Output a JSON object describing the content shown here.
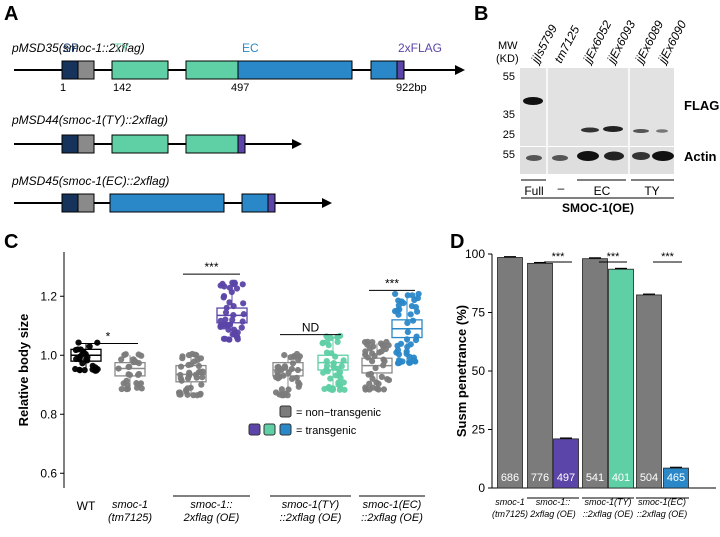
{
  "panels": {
    "A": {
      "letter": "A",
      "constructs": [
        {
          "name": "pMSD35(smoc-1::2xflag)"
        },
        {
          "name": "pMSD44(smoc-1(TY)::2xflag)"
        },
        {
          "name": "pMSD45(smoc-1(EC)::2xflag)"
        }
      ],
      "domain_labels": {
        "sp": "SP",
        "ty": "TY",
        "ec": "EC",
        "flag": "2xFLAG"
      },
      "positions": {
        "start": "1",
        "ty": "142",
        "ec": "497",
        "end": "922bp"
      }
    },
    "B": {
      "letter": "B",
      "mw_label_1": "MW",
      "mw_label_2": "(KD)",
      "lanes": [
        "jjIs5799",
        "tm7125",
        "jjEx6052",
        "jjEx6093",
        "jjEx6089",
        "jjEx6090"
      ],
      "markers_top": [
        "55",
        "35",
        "25"
      ],
      "marker_bottom": "55",
      "row_labels": {
        "flag": "FLAG",
        "actin": "Actin"
      },
      "groups": {
        "full": "Full",
        "dash": "–",
        "ec": "EC",
        "ty": "TY"
      },
      "footer": "SMOC-1(OE)"
    },
    "C": {
      "letter": "C"
    },
    "D": {
      "letter": "D"
    }
  },
  "colors": {
    "sp": "#16335c",
    "grey_box": "#8a8a8a",
    "ty": "#5fcfa5",
    "ec": "#2a88c8",
    "flag": "#5b45a8",
    "nontransgenic": "#7b7b7b",
    "transgenic_full": "#5b45a8",
    "transgenic_ty": "#5fcfa5",
    "transgenic_ec": "#2a88c8"
  },
  "chart_data": [
    {
      "type": "box",
      "id": "C",
      "ylabel": "Relative body size",
      "ylim": [
        0.55,
        1.35
      ],
      "yticks": [
        "0.6",
        "0.8",
        "1.0",
        "1.2"
      ],
      "groups": [
        {
          "label": "WT",
          "label_style": "normal",
          "box": {
            "q1": 0.98,
            "median": 1.0,
            "q3": 1.02,
            "min": 0.95,
            "max": 1.04
          },
          "color": "#000000",
          "n": 28,
          "outlined": true
        },
        {
          "label": "smoc-1\n(tm7125)",
          "label_style": "italic",
          "box": {
            "q1": 0.93,
            "median": 0.955,
            "q3": 0.975,
            "min": 0.89,
            "max": 1.0
          },
          "color": "#7b7b7b",
          "n": 28
        },
        {
          "label": "smoc-1::\n2xflag (OE)",
          "label_style": "italic",
          "box": {
            "q1": 0.91,
            "median": 0.935,
            "q3": 0.965,
            "min": 0.87,
            "max": 1.0
          },
          "color": "#7b7b7b",
          "n": 40
        },
        {
          "label": "",
          "box": {
            "q1": 1.11,
            "median": 1.135,
            "q3": 1.16,
            "min": 1.06,
            "max": 1.24
          },
          "color": "#5b45a8",
          "n": 45
        },
        {
          "label": "smoc-1(TY)\n::2xflag (OE)",
          "label_style": "italic",
          "box": {
            "q1": 0.93,
            "median": 0.95,
            "q3": 0.975,
            "min": 0.87,
            "max": 1.0
          },
          "color": "#7b7b7b",
          "n": 40
        },
        {
          "label": "",
          "box": {
            "q1": 0.95,
            "median": 0.975,
            "q3": 1.0,
            "min": 0.89,
            "max": 1.06
          },
          "color": "#5fcfa5",
          "n": 45
        },
        {
          "label": "smoc-1(EC)\n::2xflag (OE)",
          "label_style": "italic",
          "box": {
            "q1": 0.94,
            "median": 0.965,
            "q3": 0.99,
            "min": 0.89,
            "max": 1.04
          },
          "color": "#7b7b7b",
          "n": 40
        },
        {
          "label": "",
          "box": {
            "q1": 1.06,
            "median": 1.09,
            "q3": 1.12,
            "min": 0.98,
            "max": 1.2
          },
          "color": "#2a88c8",
          "n": 45
        }
      ],
      "comparisons": [
        {
          "from": 0,
          "to": 1,
          "label": "*",
          "y": 1.04
        },
        {
          "from": 2,
          "to": 3,
          "label": "***",
          "y": 1.275
        },
        {
          "from": 4,
          "to": 5,
          "label": "ND",
          "y": 1.07
        },
        {
          "from": 6,
          "to": 7,
          "label": "***",
          "y": 1.22
        }
      ],
      "legend": [
        {
          "label": "= non−transgenic"
        },
        {
          "label": "= transgenic"
        }
      ]
    },
    {
      "type": "bar",
      "id": "D",
      "ylabel": "Susm penetrance (%)",
      "ylim": [
        0,
        100
      ],
      "yticks": [
        "0",
        "25",
        "50",
        "75",
        "100"
      ],
      "bars": [
        {
          "value": 98.5,
          "n": "686",
          "color": "#7b7b7b"
        },
        {
          "value": 96,
          "n": "776",
          "color": "#7b7b7b"
        },
        {
          "value": 21,
          "n": "497",
          "color": "#5b45a8"
        },
        {
          "value": 98,
          "n": "541",
          "color": "#7b7b7b"
        },
        {
          "value": 93.5,
          "n": "401",
          "color": "#5fcfa5"
        },
        {
          "value": 82.5,
          "n": "504",
          "color": "#7b7b7b"
        },
        {
          "value": 8.5,
          "n": "465",
          "color": "#2a88c8"
        }
      ],
      "group_labels": [
        {
          "text": "smoc-1\n(tm7125)"
        },
        {
          "text": "smoc-1::\n2xflag (OE)"
        },
        {
          "text": "smoc-1(TY)\n::2xflag (OE)"
        },
        {
          "text": "smoc-1(EC)\n::2xflag (OE)"
        }
      ],
      "comparisons": [
        {
          "from": 1,
          "to": 2,
          "label": "***"
        },
        {
          "from": 3,
          "to": 4,
          "label": "***"
        },
        {
          "from": 5,
          "to": 6,
          "label": "***"
        }
      ]
    }
  ]
}
